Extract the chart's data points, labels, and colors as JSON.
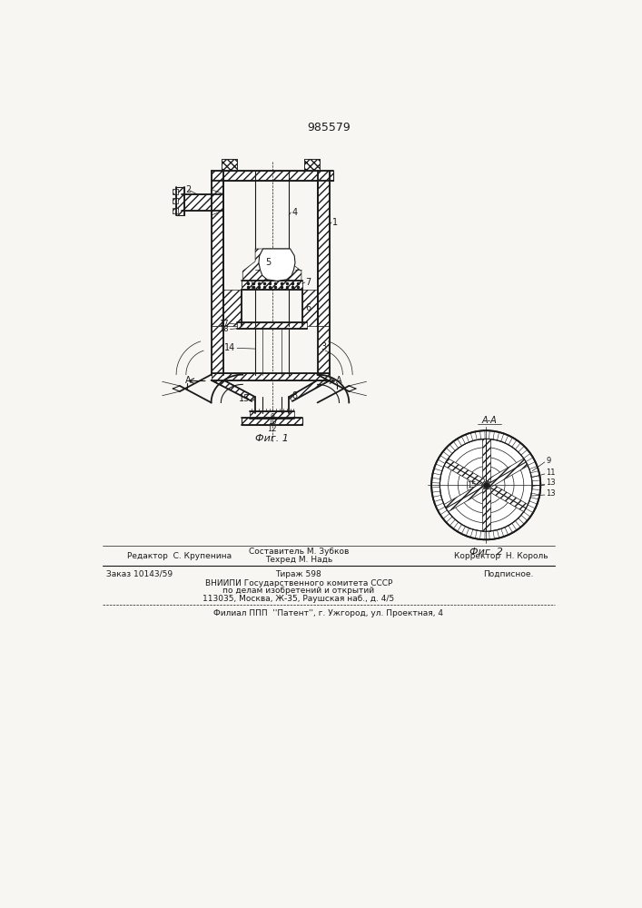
{
  "patent_number": "985579",
  "fig1_caption": "Фиг. 1",
  "fig2_caption": "Фиг. 2",
  "fig2_label": "А-А",
  "background_color": "#f8f6f2",
  "line_color": "#1a1a1a",
  "text_color": "#1a1a1a",
  "footer_line1_left": "Редактор  С. Крупенина",
  "footer_line1_center1": "Составитель М. Зубков",
  "footer_line1_center2": "Техред М. Надь",
  "footer_line1_right": "Корректор  Н. Король",
  "footer_line2_col1": "Заказ 10143/59",
  "footer_line2_col2": "Тираж 598",
  "footer_line2_col3": "Подписное.",
  "footer_line3a": "ВНИИПИ Государственного комитета СССР",
  "footer_line3b": "по делам изобретений и открытий",
  "footer_line3c": "113035, Москва, Ж-35, Раушская наб., д. 4/5",
  "footer_line4": "Филиал ППП  ''Патент'', г. Ужгород, ул. Проектная, 4"
}
